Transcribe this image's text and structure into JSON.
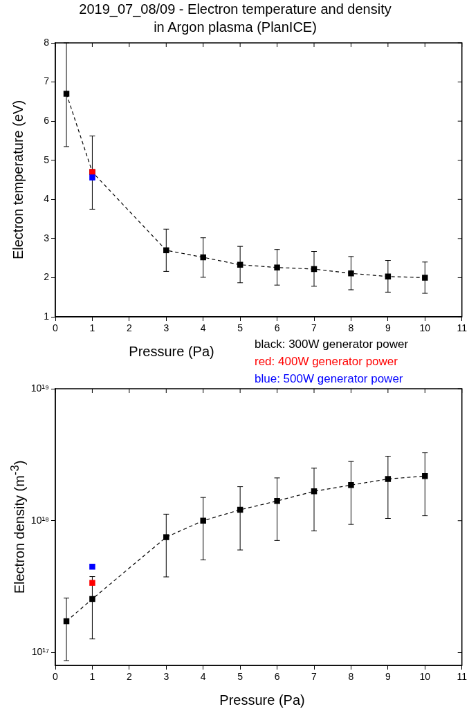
{
  "chart_data": [
    {
      "type": "line",
      "title": "2019_07_08/09 - Electron temperature and density in Argon plasma (PlanICE)",
      "xlabel": "Pressure (Pa)",
      "ylabel": "Electron temperature (eV)",
      "xlim": [
        0,
        11
      ],
      "xticks": [
        0,
        1,
        2,
        3,
        4,
        5,
        6,
        7,
        8,
        9,
        10,
        11
      ],
      "ylim": [
        1,
        8
      ],
      "yticks": [
        1,
        2,
        3,
        4,
        5,
        6,
        7,
        8
      ],
      "legend": "bottom right",
      "marker": "square",
      "line_style": "dashed",
      "series": [
        {
          "name": "black: 300W generator power",
          "color": "#000000",
          "type": "line",
          "x": [
            0.3,
            1,
            3,
            4,
            5,
            6,
            7,
            8,
            9,
            10
          ],
          "values": [
            6.7,
            4.7,
            2.7,
            2.52,
            2.33,
            2.26,
            2.22,
            2.11,
            2.03,
            2.0
          ],
          "errors": [
            [
              5.35,
              8
            ],
            [
              3.75,
              5.62
            ],
            [
              2.16,
              3.24
            ],
            [
              2.01,
              3.02
            ],
            [
              1.87,
              2.8
            ],
            [
              1.81,
              2.72
            ],
            [
              1.78,
              2.67
            ],
            [
              1.69,
              2.54
            ],
            [
              1.63,
              2.44
            ],
            [
              1.6,
              2.4
            ]
          ]
        },
        {
          "name": "red: 400W generator power",
          "color": "#ff0000",
          "type": "scatter",
          "x": [
            1
          ],
          "values": [
            4.7
          ]
        },
        {
          "name": "blue: 500W generator power",
          "color": "#0000ff",
          "type": "scatter",
          "x": [
            1
          ],
          "values": [
            4.56
          ]
        }
      ]
    },
    {
      "type": "line",
      "xlabel": "Pressure (Pa)",
      "ylabel": "Electron density (m$^{-3}$)",
      "log": "y",
      "xlim": [
        0,
        11
      ],
      "xticks": [
        0,
        1,
        2,
        3,
        4,
        5,
        6,
        7,
        8,
        9,
        10,
        11
      ],
      "ylim": [
        8e+16,
        1e+19
      ],
      "yticks": [
        {
          "value": 1e+17,
          "label": "10¹⁷"
        },
        {
          "value": 1e+18,
          "label": "10¹⁸"
        },
        {
          "value": 1e+19,
          "label": "10¹⁹"
        }
      ],
      "marker": "square",
      "line_style": "dashed",
      "series": [
        {
          "color": "#000000",
          "type": "line",
          "x": [
            0.3,
            1,
            3,
            4,
            5,
            6,
            7,
            8,
            9,
            10
          ],
          "values": [
            1.73e+17,
            2.55e+17,
            7.5e+17,
            1e+18,
            1.21e+18,
            1.41e+18,
            1.67e+18,
            1.86e+18,
            2.07e+18,
            2.18e+18
          ],
          "errors": [
            [
              8.7e+16,
              2.59e+17
            ],
            [
              1.27e+17,
              3.77e+17
            ],
            [
              3.75e+17,
              1.12e+18
            ],
            [
              5.05e+17,
              1.5e+18
            ],
            [
              6e+17,
              1.81e+18
            ],
            [
              7.08e+17,
              2.11e+18
            ],
            [
              8.36e+17,
              2.5e+18
            ],
            [
              9.37e+17,
              2.81e+18
            ],
            [
              1.04e+18,
              3.08e+18
            ],
            [
              1.09e+18,
              3.27e+18
            ]
          ]
        },
        {
          "color": "#ff0000",
          "type": "scatter",
          "x": [
            1
          ],
          "values": [
            3.38e+17
          ]
        },
        {
          "color": "#0000ff",
          "type": "scatter",
          "x": [
            1
          ],
          "values": [
            4.48e+17
          ]
        }
      ]
    }
  ]
}
